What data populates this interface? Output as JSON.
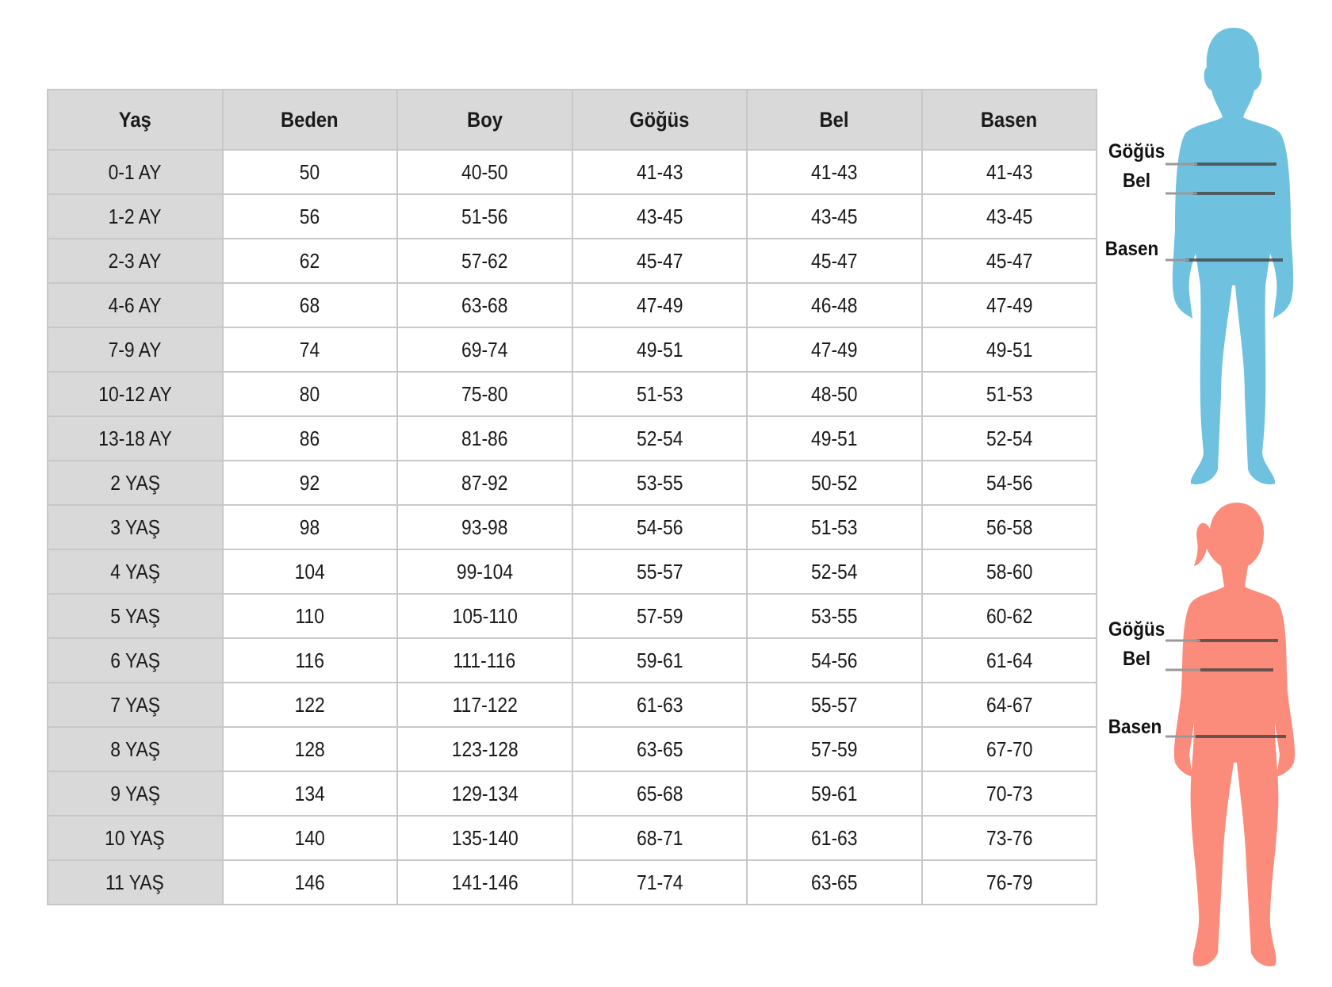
{
  "table": {
    "headers": [
      "Yaş",
      "Beden",
      "Boy",
      "Göğüs",
      "Bel",
      "Basen"
    ],
    "rows": [
      [
        "0-1 AY",
        "50",
        "40-50",
        "41-43",
        "41-43",
        "41-43"
      ],
      [
        "1-2 AY",
        "56",
        "51-56",
        "43-45",
        "43-45",
        "43-45"
      ],
      [
        "2-3 AY",
        "62",
        "57-62",
        "45-47",
        "45-47",
        "45-47"
      ],
      [
        "4-6 AY",
        "68",
        "63-68",
        "47-49",
        "46-48",
        "47-49"
      ],
      [
        "7-9 AY",
        "74",
        "69-74",
        "49-51",
        "47-49",
        "49-51"
      ],
      [
        "10-12 AY",
        "80",
        "75-80",
        "51-53",
        "48-50",
        "51-53"
      ],
      [
        "13-18 AY",
        "86",
        "81-86",
        "52-54",
        "49-51",
        "52-54"
      ],
      [
        "2 YAŞ",
        "92",
        "87-92",
        "53-55",
        "50-52",
        "54-56"
      ],
      [
        "3 YAŞ",
        "98",
        "93-98",
        "54-56",
        "51-53",
        "56-58"
      ],
      [
        "4 YAŞ",
        "104",
        "99-104",
        "55-57",
        "52-54",
        "58-60"
      ],
      [
        "5 YAŞ",
        "110",
        "105-110",
        "57-59",
        "53-55",
        "60-62"
      ],
      [
        "6 YAŞ",
        "116",
        "111-116",
        "59-61",
        "54-56",
        "61-64"
      ],
      [
        "7 YAŞ",
        "122",
        "117-122",
        "61-63",
        "55-57",
        "64-67"
      ],
      [
        "8 YAŞ",
        "128",
        "123-128",
        "63-65",
        "57-59",
        "67-70"
      ],
      [
        "9 YAŞ",
        "134",
        "129-134",
        "65-68",
        "59-61",
        "70-73"
      ],
      [
        "10 YAŞ",
        "140",
        "135-140",
        "68-71",
        "61-63",
        "73-76"
      ],
      [
        "11 YAŞ",
        "146",
        "141-146",
        "71-74",
        "63-65",
        "76-79"
      ]
    ]
  },
  "figures": {
    "boy": {
      "color": "#6ec1df",
      "labels": [
        "Göğüs",
        "Bel",
        "Basen"
      ]
    },
    "girl": {
      "color": "#fb8c7b",
      "labels": [
        "Göğüs",
        "Bel",
        "Basen"
      ]
    }
  }
}
